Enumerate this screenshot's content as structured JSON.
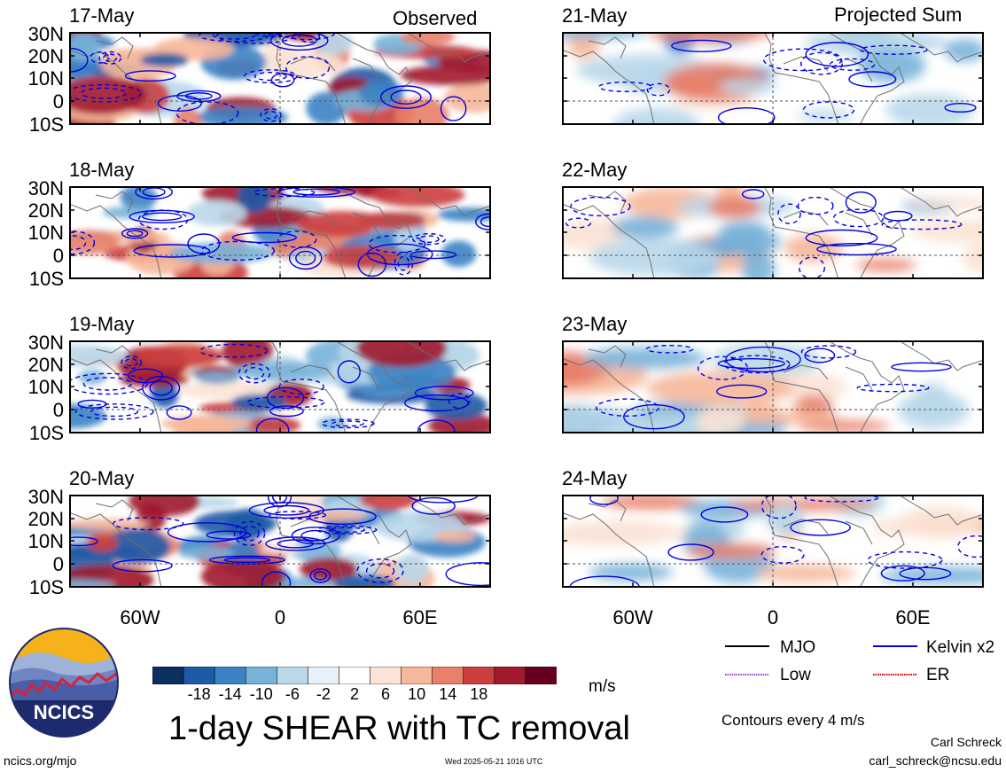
{
  "column_headers": {
    "left": "Observed",
    "right": "Projected Sum"
  },
  "panels": [
    {
      "date": "17-May",
      "column": "left",
      "row": 0
    },
    {
      "date": "18-May",
      "column": "left",
      "row": 1
    },
    {
      "date": "19-May",
      "column": "left",
      "row": 2
    },
    {
      "date": "20-May",
      "column": "left",
      "row": 3
    },
    {
      "date": "21-May",
      "column": "right",
      "row": 0
    },
    {
      "date": "22-May",
      "column": "right",
      "row": 1
    },
    {
      "date": "23-May",
      "column": "right",
      "row": 2
    },
    {
      "date": "24-May",
      "column": "right",
      "row": 3
    }
  ],
  "lat_labels": [
    "30N",
    "20N",
    "10N",
    "0",
    "10S"
  ],
  "lon_labels": [
    "60W",
    "0",
    "60E"
  ],
  "colorbar": {
    "tick_labels": [
      "-18",
      "-14",
      "-10",
      "-6",
      "-2",
      "2",
      "6",
      "10",
      "14",
      "18"
    ],
    "colors": [
      "#0b2f5e",
      "#1f5aa6",
      "#3c83c4",
      "#79b2d9",
      "#b9d8ea",
      "#e8f1f7",
      "#ffffff",
      "#fbe3d5",
      "#f6b79a",
      "#e8806a",
      "#cc3f3f",
      "#a11a2e",
      "#66001e"
    ],
    "units": "m/s"
  },
  "contour_legend": [
    {
      "label": "MJO",
      "color": "#000000",
      "style": "solid"
    },
    {
      "label": "Kelvin x2",
      "color": "#0000e0",
      "style": "solid"
    },
    {
      "label": "Low",
      "color": "#a23cd8",
      "style": "dotted"
    },
    {
      "label": "ER",
      "color": "#e00000",
      "style": "dotted"
    }
  ],
  "contour_note": "Contours every 4 m/s",
  "main_title": "1-day SHEAR with TC removal",
  "logo_text": "NCICS",
  "footer": {
    "url": "ncics.org/mjo",
    "timestamp": "Wed 2025-05-21 1016 UTC",
    "author": "Carl Schreck",
    "email": "carl_schreck@ncsu.edu"
  }
}
